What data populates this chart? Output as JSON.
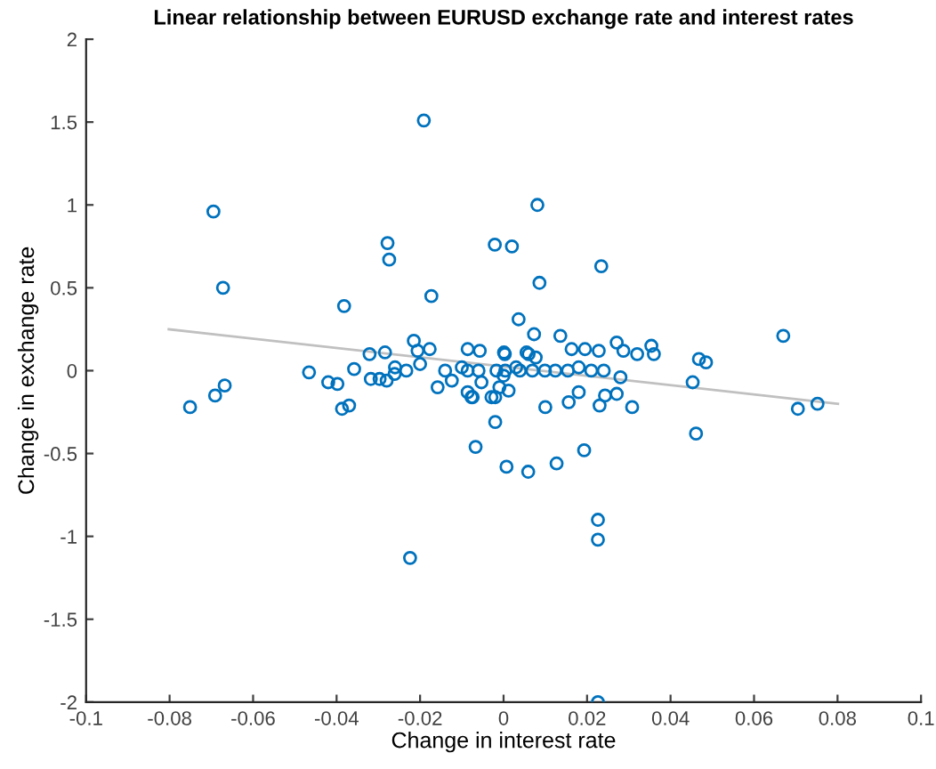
{
  "chart_data": {
    "type": "scatter",
    "title": "Linear relationship between EURUSD exchange rate and interest rates",
    "xlabel": "Change in interest rate",
    "ylabel": "Change in exchange rate",
    "xlim": [
      -0.1,
      0.1
    ],
    "xticks": [
      -0.1,
      -0.08,
      -0.06,
      -0.04,
      -0.02,
      0,
      0.02,
      0.04,
      0.06,
      0.08,
      0.1
    ],
    "ylim": [
      -2,
      2
    ],
    "yticks": [
      -2,
      -1.5,
      -1,
      -0.5,
      0,
      0.5,
      1,
      1.5,
      2
    ],
    "grid": false,
    "legend": false,
    "series": [
      {
        "marker": "circle",
        "color": "#0072bd",
        "x": [
          -0.0695,
          -0.0191,
          0.0081,
          -0.0278,
          -0.0274,
          -0.0021,
          0.002,
          0.0234,
          0.0086,
          -0.0672,
          -0.0173,
          -0.0382,
          0.0036,
          0.0073,
          0.0136,
          0.067,
          -0.0215,
          0.0271,
          0.0354,
          -0.0321,
          -0.0284,
          0.0468,
          0.0485,
          0.0163,
          0.0195,
          0.0228,
          0.0287,
          0.032,
          0.036,
          -0.0086,
          -0.0057,
          0.0001,
          0.0055,
          -0.0177,
          -0.0751,
          -0.0691,
          -0.0668,
          -0.0466,
          -0.042,
          -0.0398,
          -0.0387,
          -0.037,
          -0.0358,
          -0.0318,
          -0.0297,
          -0.028,
          -0.0261,
          -0.026,
          -0.0233,
          -0.0206,
          -0.02,
          -0.0158,
          -0.0124,
          -0.0067,
          -0.0086,
          -0.0074,
          -0.0053,
          -0.0029,
          0.0453,
          0.028,
          0.0705,
          0.0752,
          0.0461,
          0.0271,
          0.0243,
          0.023,
          0.0308,
          0.018,
          0.0156,
          0.01,
          0.0012,
          -0.002,
          -0.002,
          0.0007,
          0.0059,
          0.0127,
          0.0193,
          -0.001,
          -0.0086,
          -0.006,
          -0.0017,
          0.0004,
          0.0039,
          0.0069,
          0.0099,
          0.0124,
          0.0154,
          0.021,
          0.024,
          0.0003,
          0.006,
          0.0077,
          -0.0077,
          -0.0224,
          0.0226,
          0.0226,
          0.0226,
          -0.014,
          -0.01,
          0.003,
          0.018,
          0.0
        ],
        "values": [
          0.96,
          1.51,
          1.0,
          0.77,
          0.67,
          0.76,
          0.75,
          0.63,
          0.53,
          0.5,
          0.45,
          0.39,
          0.31,
          0.22,
          0.21,
          0.21,
          0.18,
          0.17,
          0.15,
          0.1,
          0.11,
          0.07,
          0.05,
          0.13,
          0.13,
          0.12,
          0.12,
          0.1,
          0.1,
          0.13,
          0.12,
          0.11,
          0.11,
          0.13,
          -0.22,
          -0.15,
          -0.09,
          -0.01,
          -0.07,
          -0.08,
          -0.23,
          -0.21,
          0.01,
          -0.05,
          -0.05,
          -0.06,
          -0.02,
          0.02,
          0.0,
          0.12,
          0.04,
          -0.1,
          -0.06,
          -0.46,
          -0.13,
          -0.16,
          -0.07,
          -0.16,
          -0.07,
          -0.04,
          -0.23,
          -0.2,
          -0.38,
          -0.14,
          -0.15,
          -0.21,
          -0.22,
          -0.13,
          -0.19,
          -0.22,
          -0.12,
          -0.16,
          -0.31,
          -0.58,
          -0.61,
          -0.56,
          -0.48,
          -0.1,
          0.0,
          0.0,
          0.0,
          0.0,
          0.0,
          0.0,
          0.0,
          0.0,
          0.0,
          0.0,
          0.0,
          0.1,
          0.1,
          0.08,
          -0.16,
          -1.13,
          -0.9,
          -1.02,
          -2.0,
          0.0,
          0.02,
          0.02,
          0.02,
          -0.03
        ]
      },
      {
        "type": "line",
        "marker": "none",
        "color": "#c0c0c0",
        "x": [
          -0.0802,
          0.0801
        ],
        "values": [
          0.25,
          -0.2
        ]
      }
    ]
  }
}
